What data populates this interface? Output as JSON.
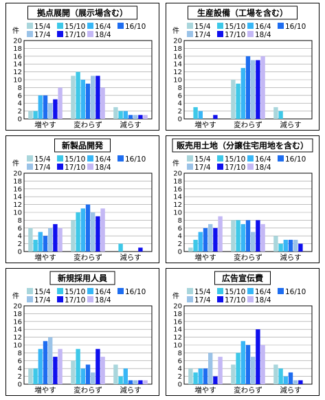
{
  "legend_labels": [
    "15/4",
    "15/10",
    "16/4",
    "16/10",
    "17/4",
    "17/10",
    "18/4"
  ],
  "series_colors": [
    "#a9d6dc",
    "#3ec8e8",
    "#38b6f6",
    "#1e6df0",
    "#9bc3e8",
    "#1010ee",
    "#c4b8f5"
  ],
  "chart_data": [
    {
      "type": "bar",
      "title": "拠点展開（展示場含む）",
      "ylabel": "件",
      "ylim": [
        0,
        20
      ],
      "yticks": [
        0,
        2,
        4,
        6,
        8,
        10,
        12,
        14,
        16,
        18,
        20
      ],
      "grid": true,
      "legend": "top",
      "categories": [
        "増やす",
        "変わらず",
        "減らす"
      ],
      "series": [
        {
          "name": "15/4",
          "values": [
            2,
            11,
            3
          ]
        },
        {
          "name": "15/10",
          "values": [
            2,
            12,
            2
          ]
        },
        {
          "name": "16/4",
          "values": [
            6,
            10,
            2
          ]
        },
        {
          "name": "16/10",
          "values": [
            6,
            9,
            1
          ]
        },
        {
          "name": "17/4",
          "values": [
            4,
            11,
            1
          ]
        },
        {
          "name": "17/10",
          "values": [
            5,
            11,
            1
          ]
        },
        {
          "name": "18/4",
          "values": [
            8,
            8,
            1
          ]
        }
      ]
    },
    {
      "type": "bar",
      "title": "生産設備（工場を含む）",
      "ylabel": "件",
      "ylim": [
        0,
        20
      ],
      "yticks": [
        0,
        2,
        4,
        6,
        8,
        10,
        12,
        14,
        16,
        18,
        20
      ],
      "grid": true,
      "legend": "top",
      "categories": [
        "増やす",
        "変わらず",
        "減らす"
      ],
      "series": [
        {
          "name": "15/4",
          "values": [
            0,
            10,
            3
          ]
        },
        {
          "name": "15/10",
          "values": [
            3,
            9,
            2
          ]
        },
        {
          "name": "16/4",
          "values": [
            2,
            13,
            0
          ]
        },
        {
          "name": "16/10",
          "values": [
            0,
            16,
            0
          ]
        },
        {
          "name": "17/4",
          "values": [
            0,
            15,
            0
          ]
        },
        {
          "name": "17/10",
          "values": [
            1,
            15,
            0
          ]
        },
        {
          "name": "18/4",
          "values": [
            0,
            16,
            0
          ]
        }
      ]
    },
    {
      "type": "bar",
      "title": "新製品開発",
      "ylabel": "件",
      "ylim": [
        0,
        20
      ],
      "yticks": [
        0,
        2,
        4,
        6,
        8,
        10,
        12,
        14,
        16,
        18,
        20
      ],
      "grid": true,
      "legend": "top",
      "categories": [
        "増やす",
        "変わらず",
        "減らす"
      ],
      "series": [
        {
          "name": "15/4",
          "values": [
            6,
            8,
            0
          ]
        },
        {
          "name": "15/10",
          "values": [
            3,
            10,
            2
          ]
        },
        {
          "name": "16/4",
          "values": [
            5,
            11,
            0
          ]
        },
        {
          "name": "16/10",
          "values": [
            4,
            12,
            0
          ]
        },
        {
          "name": "17/4",
          "values": [
            6,
            10,
            0
          ]
        },
        {
          "name": "17/10",
          "values": [
            7,
            9,
            1
          ]
        },
        {
          "name": "18/4",
          "values": [
            6,
            11,
            0
          ]
        }
      ]
    },
    {
      "type": "bar",
      "title": "販売用土地（分譲住宅用地を含む）",
      "ylabel": "件",
      "ylim": [
        0,
        20
      ],
      "yticks": [
        0,
        2,
        4,
        6,
        8,
        10,
        12,
        14,
        16,
        18,
        20
      ],
      "grid": true,
      "legend": "top",
      "categories": [
        "増やす",
        "変わらず",
        "減らす"
      ],
      "series": [
        {
          "name": "15/4",
          "values": [
            1,
            8,
            4
          ]
        },
        {
          "name": "15/10",
          "values": [
            3,
            8,
            2
          ]
        },
        {
          "name": "16/4",
          "values": [
            5,
            7,
            3
          ]
        },
        {
          "name": "16/10",
          "values": [
            6,
            8,
            3
          ]
        },
        {
          "name": "17/4",
          "values": [
            7,
            5,
            3
          ]
        },
        {
          "name": "17/10",
          "values": [
            6,
            8,
            2
          ]
        },
        {
          "name": "18/4",
          "values": [
            9,
            7,
            0
          ]
        }
      ]
    },
    {
      "type": "bar",
      "title": "新規採用人員",
      "ylabel": "件",
      "ylim": [
        0,
        20
      ],
      "yticks": [
        0,
        2,
        4,
        6,
        8,
        10,
        12,
        14,
        16,
        18,
        20
      ],
      "grid": true,
      "legend": "top",
      "categories": [
        "増やす",
        "変わらず",
        "減らす"
      ],
      "series": [
        {
          "name": "15/4",
          "values": [
            4,
            6,
            5
          ]
        },
        {
          "name": "15/10",
          "values": [
            4,
            9,
            2
          ]
        },
        {
          "name": "16/4",
          "values": [
            9,
            4,
            4
          ]
        },
        {
          "name": "16/10",
          "values": [
            11,
            5,
            1
          ]
        },
        {
          "name": "17/4",
          "values": [
            12,
            3,
            1
          ]
        },
        {
          "name": "17/10",
          "values": [
            7,
            9,
            1
          ]
        },
        {
          "name": "18/4",
          "values": [
            9,
            7,
            1
          ]
        }
      ]
    },
    {
      "type": "bar",
      "title": "広告宣伝費",
      "ylabel": "件",
      "ylim": [
        0,
        20
      ],
      "yticks": [
        0,
        2,
        4,
        6,
        8,
        10,
        12,
        14,
        16,
        18,
        20
      ],
      "grid": true,
      "legend": "top",
      "categories": [
        "増やす",
        "変わらず",
        "減らす"
      ],
      "series": [
        {
          "name": "15/4",
          "values": [
            4,
            5,
            5
          ]
        },
        {
          "name": "15/10",
          "values": [
            3,
            8,
            4
          ]
        },
        {
          "name": "16/4",
          "values": [
            4,
            11,
            2
          ]
        },
        {
          "name": "16/10",
          "values": [
            4,
            10,
            3
          ]
        },
        {
          "name": "17/4",
          "values": [
            8,
            7,
            1
          ]
        },
        {
          "name": "17/10",
          "values": [
            2,
            14,
            1
          ]
        },
        {
          "name": "18/4",
          "values": [
            7,
            10,
            0
          ]
        }
      ]
    }
  ]
}
